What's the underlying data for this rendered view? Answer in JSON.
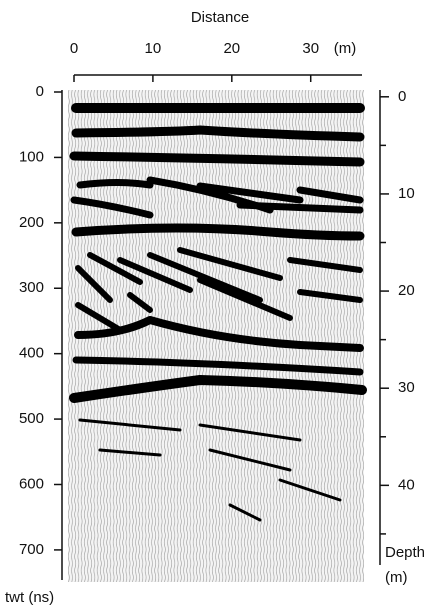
{
  "top_axis": {
    "title": "Distance",
    "unit": "(m)",
    "lim": [
      0,
      36.5
    ],
    "ticks": [
      0,
      10,
      20,
      30
    ]
  },
  "left_axis": {
    "title": "twt (ns)",
    "lim": [
      0,
      746
    ],
    "ticks": [
      0,
      100,
      200,
      300,
      400,
      500,
      600,
      700
    ]
  },
  "right_axis": {
    "title": "Depth",
    "unit": "(m)",
    "lim": [
      -0.7,
      48.2
    ],
    "ticks": [
      0,
      10,
      20,
      30,
      40
    ],
    "minor_ticks": [
      5,
      15,
      25,
      35,
      45
    ]
  }
}
